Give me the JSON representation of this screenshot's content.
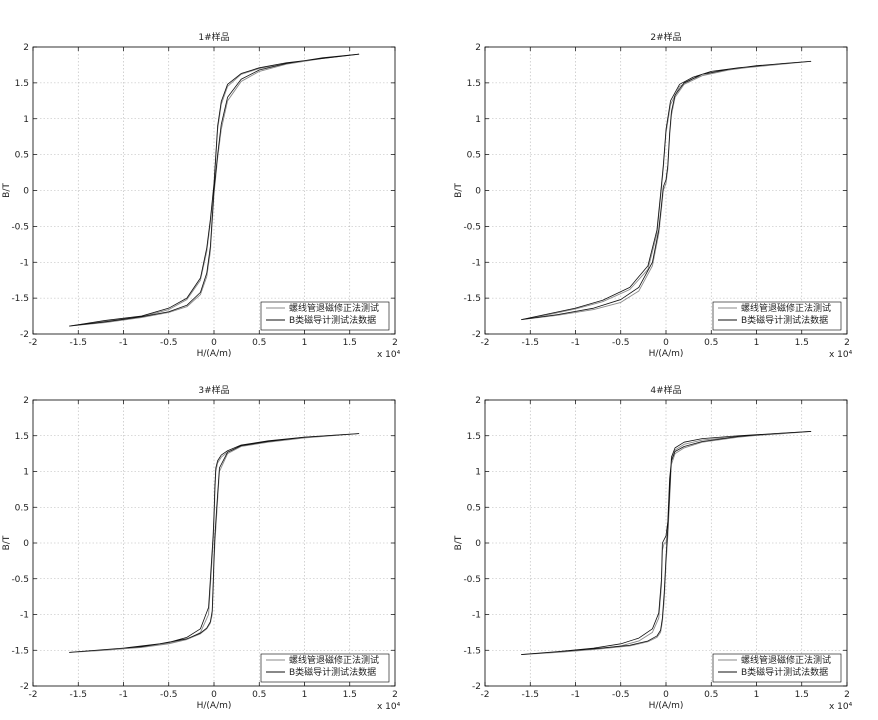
{
  "chart_data": [
    {
      "type": "line",
      "title": "1#样品",
      "xlabel": "H/(A/m)",
      "ylabel": "B/T",
      "x_multiplier": "x 10⁴",
      "xlim": [
        -2,
        2
      ],
      "ylim": [
        -2,
        2
      ],
      "xticks": [
        -2,
        -1.5,
        -1,
        -0.5,
        0,
        0.5,
        1,
        1.5,
        2
      ],
      "yticks": [
        -2,
        -1.5,
        -1,
        -0.5,
        0,
        0.5,
        1,
        1.5,
        2
      ],
      "xtick_labels": [
        "-2",
        "-1.5",
        "-1",
        "-0.5",
        "0",
        "0.5",
        "1",
        "1.5",
        "2"
      ],
      "ytick_labels": [
        "-2",
        "-1.5",
        "-1",
        "-0.5",
        "0",
        "0.5",
        "1",
        "1.5",
        "2"
      ],
      "grid": true,
      "legend": "bottom-right",
      "legend_entries": [
        "螺线管退磁修正法测试",
        "B类磁导计测试法数据"
      ],
      "series": [
        {
          "name": "螺线管退磁修正法测试",
          "color": "#8a8a8a",
          "x": [
            -1.6,
            -1.2,
            -0.8,
            -0.5,
            -0.3,
            -0.15,
            -0.08,
            -0.04,
            -0.02,
            0.0,
            0.02,
            0.04,
            0.08,
            0.15,
            0.3,
            0.5,
            0.8,
            1.2,
            1.6,
            1.2,
            0.8,
            0.5,
            0.3,
            0.15,
            0.08,
            0.04,
            0.02,
            0.0,
            -0.02,
            -0.04,
            -0.08,
            -0.15,
            -0.3,
            -0.5,
            -0.8,
            -1.2,
            -1.6
          ],
          "y": [
            -1.89,
            -1.82,
            -1.76,
            -1.66,
            -1.52,
            -1.25,
            -0.85,
            -0.45,
            -0.2,
            0.05,
            0.45,
            0.85,
            1.2,
            1.45,
            1.62,
            1.7,
            1.77,
            1.84,
            1.9,
            1.84,
            1.76,
            1.66,
            1.52,
            1.25,
            0.85,
            0.45,
            0.2,
            -0.05,
            -0.45,
            -0.85,
            -1.2,
            -1.45,
            -1.62,
            -1.7,
            -1.77,
            -1.84,
            -1.89
          ]
        },
        {
          "name": "B类磁导计测试法数据",
          "color": "#111111",
          "x": [
            -1.6,
            -1.2,
            -0.8,
            -0.5,
            -0.3,
            -0.15,
            -0.08,
            -0.04,
            -0.02,
            0.0,
            0.02,
            0.04,
            0.08,
            0.15,
            0.3,
            0.5,
            0.8,
            1.2,
            1.6,
            1.2,
            0.8,
            0.5,
            0.3,
            0.15,
            0.08,
            0.04,
            0.02,
            0.0,
            -0.02,
            -0.04,
            -0.08,
            -0.15,
            -0.3,
            -0.5,
            -0.8,
            -1.2,
            -1.6
          ],
          "y": [
            -1.89,
            -1.81,
            -1.75,
            -1.64,
            -1.5,
            -1.22,
            -0.8,
            -0.4,
            -0.15,
            0.1,
            0.5,
            0.9,
            1.24,
            1.48,
            1.63,
            1.71,
            1.78,
            1.84,
            1.9,
            1.85,
            1.77,
            1.68,
            1.55,
            1.3,
            0.92,
            0.5,
            0.25,
            0.0,
            -0.38,
            -0.78,
            -1.15,
            -1.42,
            -1.6,
            -1.69,
            -1.76,
            -1.83,
            -1.89
          ]
        }
      ]
    },
    {
      "type": "line",
      "title": "2#样品",
      "xlabel": "H/(A/m)",
      "ylabel": "B/T",
      "x_multiplier": "x 10⁴",
      "xlim": [
        -2,
        2
      ],
      "ylim": [
        -2,
        2
      ],
      "xticks": [
        -2,
        -1.5,
        -1,
        -0.5,
        0,
        0.5,
        1,
        1.5,
        2
      ],
      "yticks": [
        -2,
        -1.5,
        -1,
        -0.5,
        0,
        0.5,
        1,
        1.5,
        2
      ],
      "xtick_labels": [
        "-2",
        "-1.5",
        "-1",
        "-0.5",
        "0",
        "0.5",
        "1",
        "1.5",
        "2"
      ],
      "ytick_labels": [
        "-2",
        "-1.5",
        "-1",
        "-0.5",
        "0",
        "0.5",
        "1",
        "1.5",
        "2"
      ],
      "grid": true,
      "legend": "bottom-right",
      "legend_entries": [
        "螺线管退磁修正法测试",
        "B类磁导计测试法数据"
      ],
      "series": [
        {
          "name": "螺线管退磁修正法测试",
          "color": "#8a8a8a",
          "x": [
            -1.6,
            -1.2,
            -0.8,
            -0.5,
            -0.3,
            -0.15,
            -0.08,
            -0.05,
            -0.03,
            0.0,
            0.02,
            0.04,
            0.06,
            0.1,
            0.2,
            0.4,
            0.7,
            1.0,
            1.3,
            1.6,
            1.2,
            0.8,
            0.5,
            0.3,
            0.15,
            0.05,
            0.0,
            -0.03,
            -0.06,
            -0.1,
            -0.2,
            -0.4,
            -0.7,
            -1.0,
            -1.3,
            -1.6
          ],
          "y": [
            -1.8,
            -1.74,
            -1.66,
            -1.56,
            -1.4,
            -1.05,
            -0.6,
            -0.25,
            0.0,
            0.1,
            0.3,
            0.75,
            1.05,
            1.3,
            1.48,
            1.6,
            1.68,
            1.73,
            1.77,
            1.8,
            1.75,
            1.7,
            1.64,
            1.56,
            1.45,
            1.2,
            0.8,
            0.3,
            -0.1,
            -0.6,
            -1.1,
            -1.38,
            -1.55,
            -1.65,
            -1.73,
            -1.8
          ]
        },
        {
          "name": "B类磁导计测试法数据",
          "color": "#111111",
          "x": [
            -1.6,
            -1.2,
            -0.8,
            -0.5,
            -0.3,
            -0.15,
            -0.08,
            -0.05,
            -0.03,
            0.0,
            0.02,
            0.04,
            0.06,
            0.1,
            0.2,
            0.4,
            0.7,
            1.0,
            1.3,
            1.6,
            1.2,
            0.8,
            0.5,
            0.3,
            0.15,
            0.05,
            0.0,
            -0.03,
            -0.06,
            -0.1,
            -0.2,
            -0.4,
            -0.7,
            -1.0,
            -1.3,
            -1.6
          ],
          "y": [
            -1.8,
            -1.73,
            -1.64,
            -1.52,
            -1.35,
            -1.0,
            -0.55,
            -0.2,
            0.05,
            0.15,
            0.35,
            0.8,
            1.1,
            1.33,
            1.5,
            1.62,
            1.69,
            1.74,
            1.77,
            1.8,
            1.76,
            1.71,
            1.66,
            1.58,
            1.48,
            1.25,
            0.85,
            0.35,
            -0.05,
            -0.55,
            -1.05,
            -1.35,
            -1.53,
            -1.64,
            -1.72,
            -1.8
          ]
        }
      ]
    },
    {
      "type": "line",
      "title": "3#样品",
      "xlabel": "H/(A/m)",
      "ylabel": "B/T",
      "x_multiplier": "x 10⁴",
      "xlim": [
        -2,
        2
      ],
      "ylim": [
        -2,
        2
      ],
      "xticks": [
        -2,
        -1.5,
        -1,
        -0.5,
        0,
        0.5,
        1,
        1.5,
        2
      ],
      "yticks": [
        -2,
        -1.5,
        -1,
        -0.5,
        0,
        0.5,
        1,
        1.5,
        2
      ],
      "xtick_labels": [
        "-2",
        "-1.5",
        "-1",
        "-0.5",
        "0",
        "0.5",
        "1",
        "1.5",
        "2"
      ],
      "ytick_labels": [
        "-2",
        "-1.5",
        "-1",
        "-0.5",
        "0",
        "0.5",
        "1",
        "1.5",
        "2"
      ],
      "grid": true,
      "legend": "bottom-right",
      "legend_entries": [
        "螺线管退磁修正法测试",
        "B类磁导计测试法数据"
      ],
      "series": [
        {
          "name": "螺线管退磁修正法测试",
          "color": "#8a8a8a",
          "x": [
            -1.6,
            -1.2,
            -0.8,
            -0.5,
            -0.3,
            -0.15,
            -0.06,
            -0.03,
            -0.01,
            0.0,
            0.01,
            0.02,
            0.04,
            0.08,
            0.15,
            0.3,
            0.6,
            1.0,
            1.6,
            1.0,
            0.6,
            0.3,
            0.15,
            0.06,
            0.03,
            0.01,
            0.0,
            -0.01,
            -0.02,
            -0.04,
            -0.08,
            -0.15,
            -0.3,
            -0.6,
            -1.0,
            -1.6
          ],
          "y": [
            -1.53,
            -1.5,
            -1.46,
            -1.41,
            -1.35,
            -1.25,
            -1.0,
            -0.4,
            0.0,
            0.3,
            0.7,
            1.0,
            1.12,
            1.2,
            1.27,
            1.35,
            1.42,
            1.48,
            1.53,
            1.47,
            1.41,
            1.35,
            1.25,
            1.0,
            0.4,
            0.0,
            -0.3,
            -0.7,
            -1.0,
            -1.12,
            -1.2,
            -1.27,
            -1.35,
            -1.42,
            -1.48,
            -1.53
          ]
        },
        {
          "name": "B类磁导计测试法数据",
          "color": "#111111",
          "x": [
            -1.6,
            -1.2,
            -0.8,
            -0.5,
            -0.3,
            -0.15,
            -0.06,
            -0.03,
            -0.01,
            0.0,
            0.01,
            0.02,
            0.04,
            0.08,
            0.15,
            0.3,
            0.6,
            1.0,
            1.6,
            1.0,
            0.6,
            0.3,
            0.15,
            0.06,
            0.03,
            0.01,
            0.0,
            -0.01,
            -0.02,
            -0.04,
            -0.08,
            -0.15,
            -0.3,
            -0.6,
            -1.0,
            -1.6
          ],
          "y": [
            -1.53,
            -1.49,
            -1.45,
            -1.39,
            -1.32,
            -1.2,
            -0.9,
            -0.3,
            0.1,
            0.4,
            0.8,
            1.05,
            1.15,
            1.23,
            1.29,
            1.37,
            1.43,
            1.48,
            1.53,
            1.48,
            1.42,
            1.36,
            1.27,
            1.05,
            0.5,
            0.1,
            -0.2,
            -0.6,
            -0.95,
            -1.1,
            -1.19,
            -1.26,
            -1.34,
            -1.41,
            -1.47,
            -1.53
          ]
        }
      ]
    },
    {
      "type": "line",
      "title": "4#样品",
      "xlabel": "H/(A/m)",
      "ylabel": "B/T",
      "x_multiplier": "x 10⁴",
      "xlim": [
        -2,
        2
      ],
      "ylim": [
        -2,
        2
      ],
      "xticks": [
        -2,
        -1.5,
        -1,
        -0.5,
        0,
        0.5,
        1,
        1.5,
        2
      ],
      "yticks": [
        -2,
        -1.5,
        -1,
        -0.5,
        0,
        0.5,
        1,
        1.5,
        2
      ],
      "xtick_labels": [
        "-2",
        "-1.5",
        "-1",
        "-0.5",
        "0",
        "0.5",
        "1",
        "1.5",
        "2"
      ],
      "ytick_labels": [
        "-2",
        "-1.5",
        "-1",
        "-0.5",
        "0",
        "0.5",
        "1",
        "1.5",
        "2"
      ],
      "grid": true,
      "legend": "bottom-right",
      "legend_entries": [
        "螺线管退磁修正法测试",
        "B类磁导计测试法数据"
      ],
      "series": [
        {
          "name": "螺线管退磁修正法测试",
          "color": "#8a8a8a",
          "x": [
            -1.6,
            -1.2,
            -0.8,
            -0.5,
            -0.3,
            -0.15,
            -0.08,
            -0.05,
            -0.04,
            -0.02,
            0.0,
            0.02,
            0.04,
            0.06,
            0.1,
            0.2,
            0.4,
            0.8,
            1.2,
            1.6,
            1.2,
            0.8,
            0.4,
            0.2,
            0.1,
            0.06,
            0.04,
            0.02,
            0.0,
            -0.02,
            -0.04,
            -0.06,
            -0.1,
            -0.2,
            -0.4,
            -0.8,
            -1.2,
            -1.6
          ],
          "y": [
            -1.56,
            -1.53,
            -1.49,
            -1.44,
            -1.37,
            -1.25,
            -1.05,
            -0.6,
            -0.1,
            0.0,
            0.0,
            0.2,
            0.8,
            1.1,
            1.25,
            1.33,
            1.41,
            1.48,
            1.53,
            1.56,
            1.52,
            1.49,
            1.44,
            1.38,
            1.3,
            1.15,
            0.6,
            0.1,
            -0.3,
            -0.8,
            -1.1,
            -1.25,
            -1.32,
            -1.38,
            -1.44,
            -1.49,
            -1.53,
            -1.56
          ]
        },
        {
          "name": "B类磁导计测试法数据",
          "color": "#111111",
          "x": [
            -1.6,
            -1.2,
            -0.8,
            -0.5,
            -0.3,
            -0.15,
            -0.08,
            -0.05,
            -0.04,
            -0.02,
            0.0,
            0.02,
            0.04,
            0.06,
            0.1,
            0.2,
            0.4,
            0.8,
            1.2,
            1.6,
            1.2,
            0.8,
            0.4,
            0.2,
            0.1,
            0.06,
            0.04,
            0.02,
            0.0,
            -0.02,
            -0.04,
            -0.06,
            -0.1,
            -0.2,
            -0.4,
            -0.8,
            -1.2,
            -1.6
          ],
          "y": [
            -1.56,
            -1.52,
            -1.47,
            -1.41,
            -1.33,
            -1.2,
            -0.98,
            -0.5,
            0.0,
            0.05,
            0.1,
            0.3,
            0.9,
            1.15,
            1.28,
            1.35,
            1.42,
            1.49,
            1.53,
            1.56,
            1.53,
            1.5,
            1.46,
            1.41,
            1.33,
            1.2,
            0.7,
            0.2,
            -0.2,
            -0.7,
            -1.05,
            -1.22,
            -1.3,
            -1.37,
            -1.43,
            -1.48,
            -1.52,
            -1.56
          ]
        }
      ]
    }
  ]
}
